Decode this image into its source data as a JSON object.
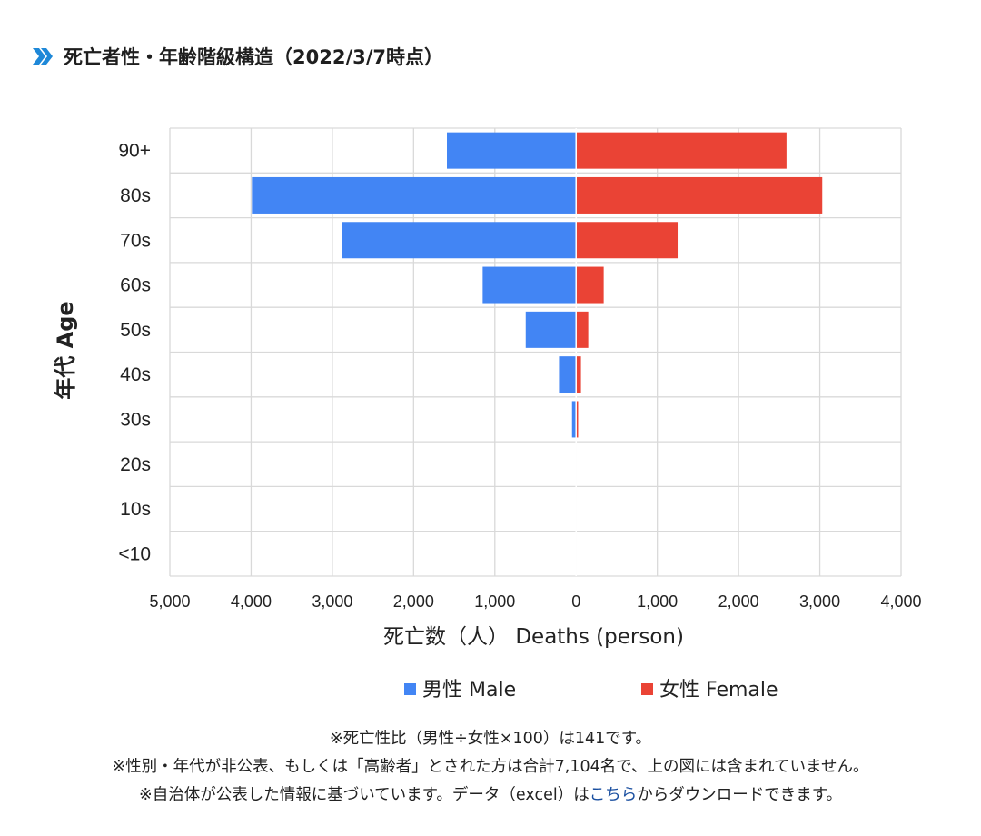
{
  "section": {
    "title": "死亡者性・年齢階級構造（2022/3/7時点）",
    "icon": "double-chevron-right-icon"
  },
  "chart_data": {
    "type": "bar",
    "orientation": "horizontal",
    "subtype": "population-pyramid",
    "categories": [
      "90+",
      "80s",
      "70s",
      "60s",
      "50s",
      "40s",
      "30s",
      "20s",
      "10s",
      "<10"
    ],
    "series": [
      {
        "name": "男性 Male",
        "color": "#4285f4",
        "side": "left",
        "values": [
          1590,
          3990,
          2880,
          1150,
          620,
          210,
          50,
          0,
          0,
          0
        ]
      },
      {
        "name": "女性 Female",
        "color": "#ea4335",
        "side": "right",
        "values": [
          2590,
          3030,
          1250,
          340,
          150,
          60,
          25,
          0,
          0,
          0
        ]
      }
    ],
    "xlim": [
      -5000,
      4000
    ],
    "xticks": [
      -5000,
      -4000,
      -3000,
      -2000,
      -1000,
      0,
      1000,
      2000,
      3000,
      4000
    ],
    "xtick_labels": [
      "5,000",
      "4,000",
      "3,000",
      "2,000",
      "1,000",
      "0",
      "1,000",
      "2,000",
      "3,000",
      "4,000"
    ],
    "xlabel": "死亡数（人） Deaths (person)",
    "ylabel": "年代 Age",
    "grid": true,
    "legend_position": "bottom"
  },
  "notes": {
    "line1": "※死亡性比（男性÷女性×100）は141です。",
    "line2": "※性別・年代が非公表、もしくは「高齢者」とされた方は合計7,104名で、上の図には含まれていません。",
    "line3_before": "※自治体が公表した情報に基づいています。データ（excel）は",
    "line3_link": "こちら",
    "line3_after": "からダウンロードできます。"
  }
}
